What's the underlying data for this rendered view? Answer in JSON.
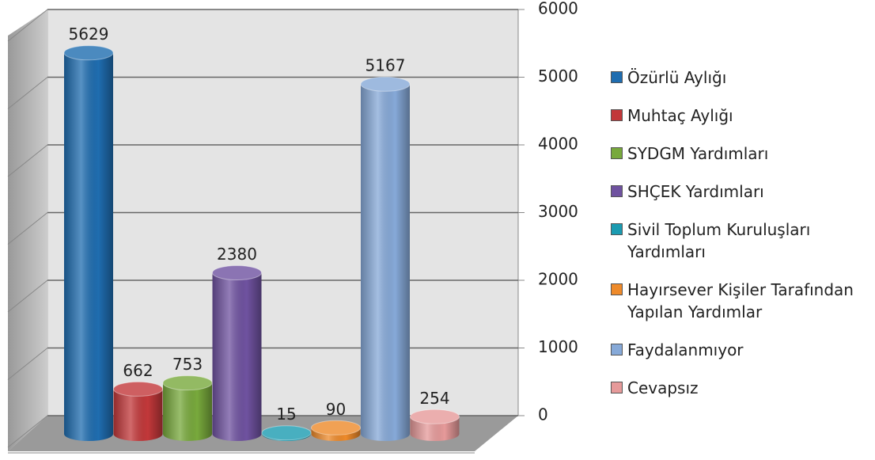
{
  "chart_data": {
    "type": "cylinder",
    "categories": [
      null
    ],
    "series": [
      {
        "name": "Özürlü Aylığı",
        "color": "#1f6db0",
        "values": [
          5629
        ]
      },
      {
        "name": "Muhtaç Aylığı",
        "color": "#c2383a",
        "values": [
          662
        ]
      },
      {
        "name": "SYDGM Yardımları",
        "color": "#78a93c",
        "values": [
          753
        ]
      },
      {
        "name": "SHÇEK Yardımları",
        "color": "#6f52a0",
        "values": [
          2380
        ]
      },
      {
        "name": "Sivil Toplum Kuruluşları Yardımları",
        "color": "#1b9bb1",
        "values": [
          15
        ]
      },
      {
        "name": "Hayırsever Kişiler Tarafından Yapılan Yardımlar",
        "color": "#ee8a2a",
        "values": [
          90
        ]
      },
      {
        "name": "Faydalanmıyor",
        "color": "#86a9d8",
        "values": [
          5167
        ]
      },
      {
        "name": "Cevapsız",
        "color": "#e69a9a",
        "values": [
          254
        ]
      }
    ],
    "ylim": [
      0,
      6000
    ],
    "yticks": [
      0,
      1000,
      2000,
      3000,
      4000,
      5000,
      6000
    ],
    "grid": true,
    "legend": "right"
  }
}
